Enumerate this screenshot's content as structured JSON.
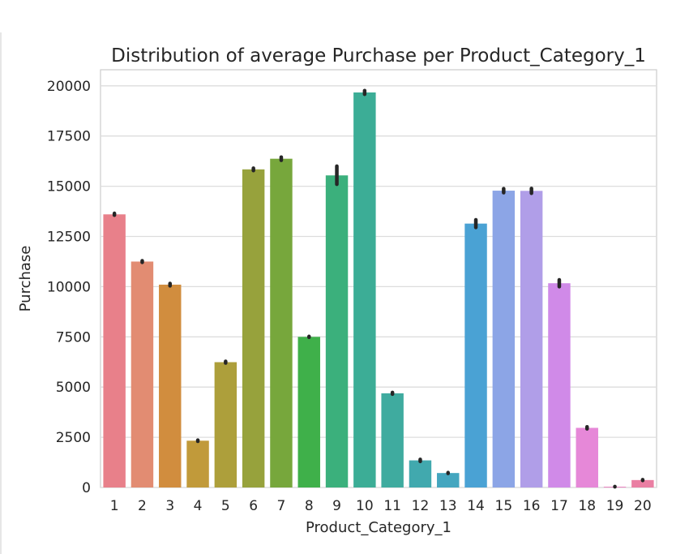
{
  "chart_data": {
    "type": "bar",
    "title": "Distribution of average Purchase per Product_Category_1",
    "xlabel": "Product_Category_1",
    "ylabel": "Purchase",
    "ylim": [
      0,
      20800
    ],
    "yticks": [
      0,
      2500,
      5000,
      7500,
      10000,
      12500,
      15000,
      17500,
      20000
    ],
    "categories": [
      "1",
      "2",
      "3",
      "4",
      "5",
      "6",
      "7",
      "8",
      "9",
      "10",
      "11",
      "12",
      "13",
      "14",
      "15",
      "16",
      "17",
      "18",
      "19",
      "20"
    ],
    "values": [
      13600,
      11250,
      10100,
      2330,
      6240,
      15840,
      16370,
      7500,
      15540,
      19670,
      4690,
      1350,
      720,
      13140,
      14780,
      14770,
      10170,
      2970,
      40,
      370
    ],
    "error_low": [
      13560,
      11210,
      10040,
      2300,
      6200,
      15780,
      16290,
      7480,
      15100,
      19580,
      4650,
      1300,
      700,
      12950,
      14680,
      14650,
      10000,
      2920,
      35,
      350
    ],
    "error_high": [
      13650,
      11290,
      10160,
      2360,
      6280,
      15900,
      16450,
      7520,
      16000,
      19760,
      4730,
      1400,
      740,
      13330,
      14880,
      14890,
      10340,
      3020,
      45,
      390
    ],
    "colors": [
      "#e8808a",
      "#e28c72",
      "#d18d3e",
      "#c19a3a",
      "#ad9f3b",
      "#97a23c",
      "#77a73c",
      "#3fb04a",
      "#3bb07c",
      "#3cad96",
      "#3fab9f",
      "#41a9ae",
      "#44a6bf",
      "#4aa2d4",
      "#8ca5e6",
      "#b09ee8",
      "#d08ae8",
      "#e688d8",
      "#eb86c2",
      "#ea7fa3"
    ],
    "grid": true
  }
}
